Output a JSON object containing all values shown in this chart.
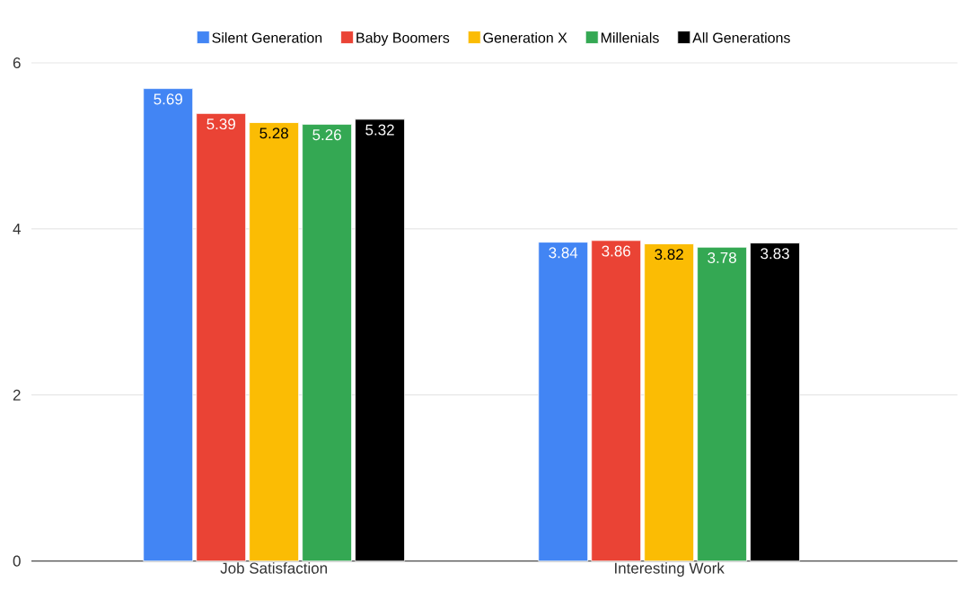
{
  "chart_data": {
    "type": "bar",
    "categories": [
      "Job Satisfaction",
      "Interesting Work"
    ],
    "series": [
      {
        "name": "Silent Generation",
        "color": "#4285f4",
        "values": [
          5.69,
          3.84
        ]
      },
      {
        "name": "Baby Boomers",
        "color": "#ea4335",
        "values": [
          5.39,
          3.86
        ]
      },
      {
        "name": "Generation X",
        "color": "#fbbc04",
        "values": [
          5.28,
          3.82
        ]
      },
      {
        "name": "Millenials",
        "color": "#34a853",
        "values": [
          5.26,
          3.78
        ]
      },
      {
        "name": "All Generations",
        "color": "#000000",
        "values": [
          5.32,
          3.83
        ]
      }
    ],
    "ylim": [
      0,
      6
    ],
    "yticks": [
      0,
      2,
      4,
      6
    ],
    "grid": "y",
    "legend": "top",
    "data_labels": true
  }
}
